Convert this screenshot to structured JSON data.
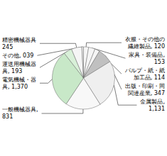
{
  "chart_data": {
    "type": "pie",
    "categories": [
      "衣服・その他の\n繊維製品, 120",
      "家具・装備品,\n153",
      "パルプ・紙・紙\n加工品, 114",
      "出版・印刷・同\n関連産業, 347",
      "金属製品,\n1,131",
      "一般機械器具,\n831",
      "電気機械・器\n具, 1,370",
      "運送用機械器\n具, 193",
      "精密機械器具\n245",
      "その他, 039"
    ],
    "values": [
      120,
      153,
      114,
      347,
      1131,
      831,
      1370,
      193,
      245,
      39
    ],
    "colors": [
      "#f5f5f5",
      "#f5f5f5",
      "#f5f5f5",
      "#c0c0c0",
      "#efefef",
      "#f8f8f8",
      "#c8e8c8",
      "#d8f0d8",
      "#f5f5f5",
      "#f0f0f0"
    ]
  }
}
